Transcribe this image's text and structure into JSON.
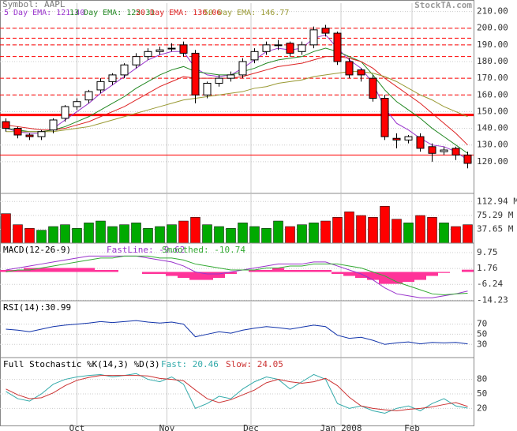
{
  "header": {
    "symbol": "Symbol: AAPL",
    "brand": "StockTA.com"
  },
  "chart_data": [
    {
      "type": "candlestick",
      "open": [
        144,
        140,
        136,
        135,
        139,
        146,
        153,
        157,
        163,
        168,
        172,
        178,
        183,
        186,
        188,
        190,
        185,
        160,
        167,
        170,
        172,
        181,
        186,
        190,
        191,
        186,
        190,
        200,
        197,
        180,
        175,
        170,
        158,
        134,
        133,
        135,
        129,
        126,
        128,
        124
      ],
      "high": [
        146,
        141,
        137,
        139,
        146,
        154,
        158,
        163,
        170,
        173,
        179,
        185,
        188,
        189,
        191,
        192,
        187,
        168,
        172,
        174,
        182,
        188,
        192,
        193,
        192,
        192,
        201,
        202,
        198,
        182,
        176,
        172,
        160,
        137,
        136,
        137,
        131,
        129,
        129,
        126
      ],
      "low": [
        138,
        134,
        133,
        133,
        137,
        144,
        151,
        155,
        161,
        166,
        170,
        176,
        181,
        184,
        186,
        183,
        155,
        158,
        165,
        168,
        170,
        179,
        184,
        187,
        183,
        184,
        188,
        195,
        178,
        170,
        168,
        156,
        133,
        128,
        131,
        126,
        120,
        124,
        121,
        116
      ],
      "close": [
        140,
        136,
        135,
        138,
        145,
        153,
        156,
        162,
        168,
        172,
        178,
        183,
        186,
        187,
        188,
        185,
        160,
        167,
        170,
        172,
        180,
        186,
        190,
        190,
        185,
        190,
        199,
        197,
        180,
        172,
        172,
        158,
        135,
        133,
        135,
        128,
        125,
        127,
        124,
        119
      ],
      "up_color": "#ffffff",
      "down_color": "#ff0000",
      "series": [
        {
          "name": "5 Day EMA: 121.40",
          "color": "#9933cc",
          "values": [
            140,
            138,
            137,
            137,
            140,
            145,
            150,
            155,
            161,
            166,
            171,
            176,
            181,
            184,
            186,
            186,
            176,
            172,
            171,
            172,
            176,
            181,
            186,
            188,
            187,
            188,
            194,
            196,
            188,
            181,
            176,
            167,
            152,
            143,
            139,
            134,
            130,
            129,
            126,
            121
          ]
        },
        {
          "name": "13 Day EMA: 125.31",
          "color": "#228822",
          "values": [
            140,
            139,
            138,
            138,
            139,
            141,
            144,
            147,
            151,
            155,
            159,
            164,
            168,
            172,
            175,
            177,
            174,
            173,
            172,
            172,
            174,
            176,
            179,
            181,
            182,
            183,
            186,
            188,
            186,
            183,
            180,
            172,
            163,
            156,
            151,
            146,
            140,
            135,
            130,
            125
          ]
        },
        {
          "name": "20 Day EMA: 130.06",
          "color": "#dd2222",
          "values": [
            142,
            141,
            140,
            139,
            139,
            140,
            142,
            144,
            147,
            150,
            153,
            157,
            161,
            165,
            168,
            171,
            170,
            170,
            170,
            170,
            171,
            173,
            175,
            177,
            178,
            179,
            181,
            183,
            183,
            182,
            180,
            176,
            170,
            165,
            160,
            155,
            149,
            143,
            137,
            130
          ]
        },
        {
          "name": "50 Day EMA: 146.77",
          "color": "#999933",
          "values": [
            138,
            138,
            138,
            138,
            138,
            139,
            140,
            141,
            143,
            145,
            147,
            149,
            151,
            153,
            155,
            157,
            158,
            159,
            160,
            161,
            162,
            164,
            165,
            167,
            168,
            169,
            171,
            172,
            173,
            174,
            174,
            173,
            171,
            168,
            164,
            160,
            157,
            153,
            150,
            147
          ]
        }
      ],
      "dashed_levels": [
        200,
        194,
        190,
        183,
        170,
        160
      ],
      "solid_levels": [
        148,
        124
      ],
      "level_color": "#ff0000",
      "ylim": [
        101,
        215
      ],
      "yticks": [
        {
          "value": 120,
          "label": "120.00"
        },
        {
          "value": 130,
          "label": "130.00"
        },
        {
          "value": 140,
          "label": "140.00"
        },
        {
          "value": 150,
          "label": "150.00"
        },
        {
          "value": 160,
          "label": "160.00"
        },
        {
          "value": 170,
          "label": "170.00"
        },
        {
          "value": 180,
          "label": "180.00"
        },
        {
          "value": 190,
          "label": "190.00"
        },
        {
          "value": 200,
          "label": "200.00"
        },
        {
          "value": 210,
          "label": "210.00"
        }
      ]
    },
    {
      "type": "bar",
      "values": [
        80,
        50,
        40,
        35,
        45,
        50,
        40,
        55,
        60,
        45,
        50,
        55,
        40,
        45,
        50,
        60,
        70,
        50,
        45,
        40,
        55,
        45,
        40,
        60,
        45,
        50,
        55,
        60,
        70,
        85,
        75,
        70,
        100,
        65,
        55,
        75,
        70,
        55,
        45,
        50
      ],
      "up_color": "#00aa00",
      "down_color": "#ff0000",
      "ylim": [
        0,
        135
      ],
      "yticks": [
        {
          "value": 37.65,
          "label": "37.65 M"
        },
        {
          "value": 75.29,
          "label": "75.29 M"
        },
        {
          "value": 112.94,
          "label": "112.94 M"
        }
      ]
    },
    {
      "type": "macd",
      "title": "MACD(12-26-9)",
      "series": [
        {
          "name": "FastLine: -9.62",
          "color": "#9933cc",
          "values": [
            1,
            2,
            3,
            4,
            5,
            6,
            7,
            8,
            8,
            8,
            8,
            8,
            7,
            6,
            5,
            3,
            0,
            -1,
            -1,
            0,
            1,
            2,
            3,
            4,
            4,
            4,
            5,
            5,
            3,
            1,
            -1,
            -4,
            -8,
            -11,
            -12,
            -13,
            -13,
            -12,
            -11,
            -9.62
          ]
        },
        {
          "name": "Smoothed: -10.74",
          "color": "#33aa33",
          "values": [
            0,
            1,
            1,
            2,
            3,
            4,
            5,
            6,
            7,
            7,
            8,
            8,
            8,
            7,
            7,
            6,
            4,
            3,
            2,
            1,
            1,
            1,
            2,
            2,
            3,
            3,
            4,
            4,
            4,
            3,
            2,
            0,
            -2,
            -5,
            -7,
            -9,
            -11,
            -11.5,
            -11,
            -10.74
          ]
        }
      ],
      "histogram": [
        1,
        1,
        2,
        2,
        2,
        2,
        2,
        2,
        1,
        1,
        0,
        0,
        -1,
        -1,
        -2,
        -3,
        -4,
        -4,
        -3,
        -1,
        0,
        1,
        1,
        2,
        1,
        1,
        1,
        1,
        -1,
        -2,
        -3,
        -4,
        -6,
        -6,
        -5,
        -4,
        -2,
        -0.5,
        0,
        1.12
      ],
      "histogram_color": "#ff3399",
      "ylim": [
        -14.5,
        14.5
      ],
      "yticks": [
        9.75,
        1.76,
        -6.24,
        -14.23
      ]
    },
    {
      "type": "line",
      "title": "RSI(14):30.99",
      "series": [
        {
          "color": "#1133aa",
          "values": [
            60,
            58,
            55,
            60,
            65,
            68,
            70,
            72,
            75,
            73,
            75,
            77,
            74,
            72,
            74,
            70,
            45,
            50,
            55,
            52,
            58,
            62,
            65,
            63,
            60,
            64,
            68,
            65,
            48,
            42,
            44,
            38,
            30,
            33,
            35,
            31,
            34,
            33,
            34,
            30.99
          ]
        }
      ],
      "ylim": [
        4,
        116
      ],
      "yticks": [
        70,
        50,
        30
      ]
    },
    {
      "type": "line",
      "title": "Full Stochastic %K(14,3) %D(3)",
      "series": [
        {
          "name": "Fast: 20.46",
          "color": "#33aaaa",
          "values": [
            55,
            40,
            35,
            50,
            70,
            80,
            85,
            88,
            90,
            85,
            88,
            92,
            80,
            75,
            85,
            70,
            20,
            30,
            45,
            40,
            60,
            75,
            85,
            80,
            60,
            75,
            90,
            80,
            30,
            20,
            25,
            15,
            10,
            20,
            25,
            15,
            30,
            40,
            25,
            20.46
          ]
        },
        {
          "name": "Slow: 24.05",
          "color": "#cc3333",
          "values": [
            60,
            48,
            40,
            42,
            52,
            67,
            78,
            84,
            88,
            88,
            88,
            88,
            87,
            82,
            80,
            77,
            58,
            40,
            32,
            38,
            48,
            58,
            73,
            80,
            75,
            72,
            75,
            82,
            67,
            43,
            25,
            20,
            17,
            15,
            18,
            20,
            23,
            28,
            32,
            24.05
          ]
        }
      ],
      "ylim": [
        -17,
        125
      ],
      "yticks": [
        80,
        50,
        20
      ],
      "xticks": [
        {
          "value": 6,
          "label": "Oct"
        },
        {
          "value": 13.6,
          "label": "Nov"
        },
        {
          "value": 20.7,
          "label": "Dec"
        },
        {
          "value": 28.3,
          "label": "Jan 2008"
        },
        {
          "value": 34.3,
          "label": "Feb"
        }
      ]
    }
  ]
}
